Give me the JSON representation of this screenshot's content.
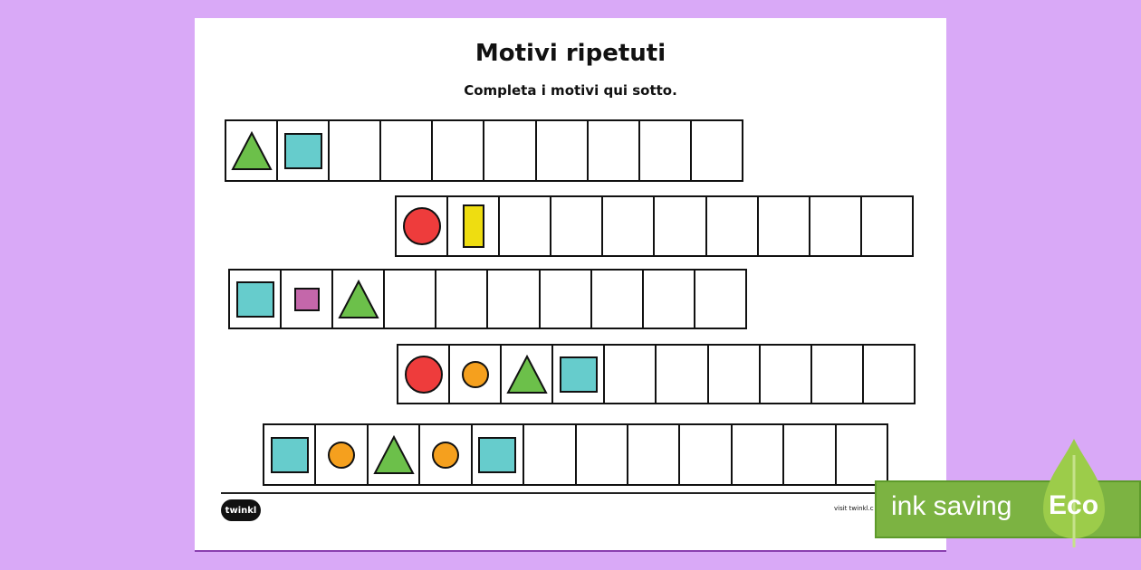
{
  "title": "Motivi ripetuti",
  "subtitle": "Completa i motivi qui sotto.",
  "rows": [
    {
      "cells": 10,
      "shapes": [
        {
          "type": "triangle",
          "color": "#6cc04a"
        },
        {
          "type": "square",
          "color": "#66cccc"
        }
      ]
    },
    {
      "cells": 10,
      "shapes": [
        {
          "type": "circle",
          "color": "#ee3c3c"
        },
        {
          "type": "rect",
          "color": "#eedd11"
        }
      ]
    },
    {
      "cells": 10,
      "shapes": [
        {
          "type": "square",
          "color": "#66cccc"
        },
        {
          "type": "small-square",
          "color": "#c467aa"
        },
        {
          "type": "triangle",
          "color": "#6cc04a"
        }
      ]
    },
    {
      "cells": 10,
      "shapes": [
        {
          "type": "circle",
          "color": "#ee3c3c"
        },
        {
          "type": "small-circle",
          "color": "#f5a01e"
        },
        {
          "type": "triangle",
          "color": "#6cc04a"
        },
        {
          "type": "square",
          "color": "#66cccc"
        }
      ]
    },
    {
      "cells": 12,
      "shapes": [
        {
          "type": "square",
          "color": "#66cccc"
        },
        {
          "type": "small-circle",
          "color": "#f5a01e"
        },
        {
          "type": "triangle",
          "color": "#6cc04a"
        },
        {
          "type": "small-circle",
          "color": "#f5a01e"
        },
        {
          "type": "square",
          "color": "#66cccc"
        }
      ]
    }
  ],
  "footer": {
    "logo": "twinkl",
    "visit": "visit twinkl.c"
  },
  "badge": {
    "ink": "ink saving",
    "eco": "Eco",
    "color": "#7cb342"
  }
}
